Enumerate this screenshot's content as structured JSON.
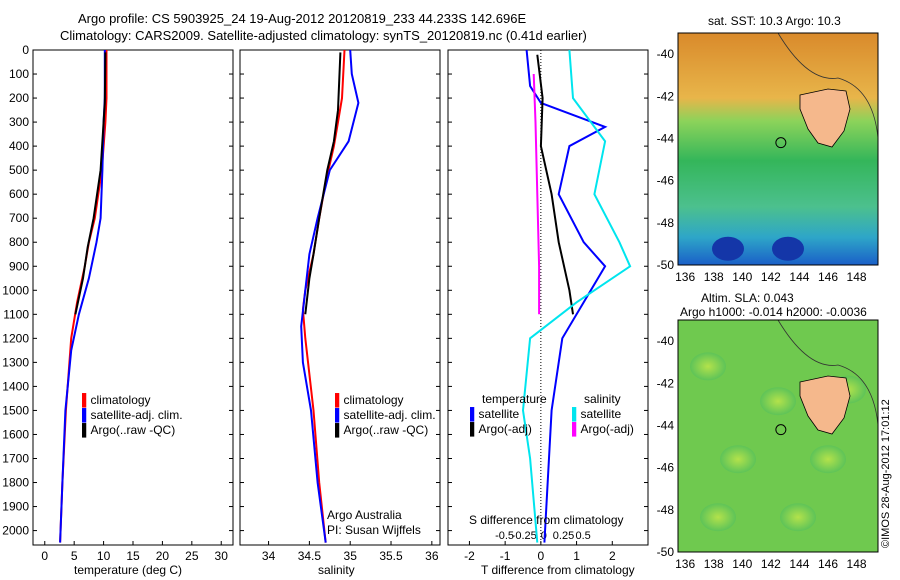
{
  "header": {
    "line1": "Argo profile: CS 5903925_24 19-Aug-2012 20120819_233 44.233S 142.696E",
    "line2": "Climatology: CARS2009. Satellite-adjusted climatology: synTS_20120819.nc (0.41d earlier)"
  },
  "colors": {
    "climatology": "#ff0000",
    "satellite": "#0000ff",
    "argo": "#000000",
    "argo_adj": "#ff00ff",
    "sat_sal": "#00e5ee"
  },
  "chart_data": [
    {
      "type": "line",
      "xlabel": "temperature (deg C)",
      "xticks": [
        "0",
        "5",
        "10",
        "15",
        "20",
        "25",
        "30"
      ],
      "yticks": [
        "0",
        "100",
        "200",
        "300",
        "400",
        "500",
        "600",
        "700",
        "800",
        "900",
        "1000",
        "1100",
        "1200",
        "1300",
        "1400",
        "1500",
        "1600",
        "1700",
        "1800",
        "1900",
        "2000"
      ],
      "xlim": [
        -2,
        32
      ],
      "ylim": [
        2060,
        0
      ],
      "legend": [
        "climatology",
        "satellite-adj. clim.",
        "Argo(..raw -QC)"
      ],
      "series": [
        {
          "name": "climatology",
          "color": "#ff0000",
          "points": [
            [
              10.5,
              0
            ],
            [
              10.5,
              200
            ],
            [
              10.3,
              300
            ],
            [
              9.7,
              500
            ],
            [
              8.5,
              700
            ],
            [
              7.5,
              800
            ],
            [
              6.8,
              900
            ],
            [
              5.5,
              1050
            ],
            [
              4.5,
              1200
            ],
            [
              3.6,
              1500
            ],
            [
              3.0,
              1800
            ],
            [
              2.6,
              2050
            ]
          ]
        },
        {
          "name": "satellite-adj. clim.",
          "color": "#0000ff",
          "points": [
            [
              10.2,
              0
            ],
            [
              10.2,
              200
            ],
            [
              10.0,
              300
            ],
            [
              9.8,
              500
            ],
            [
              9.5,
              700
            ],
            [
              8.8,
              800
            ],
            [
              7.5,
              950
            ],
            [
              5.8,
              1100
            ],
            [
              4.5,
              1250
            ],
            [
              3.5,
              1500
            ],
            [
              3.0,
              1800
            ],
            [
              2.6,
              2050
            ]
          ]
        },
        {
          "name": "Argo(..raw -QC)",
          "color": "#000000",
          "points": [
            [
              10.3,
              10
            ],
            [
              10.2,
              220
            ],
            [
              9.5,
              500
            ],
            [
              8.3,
              700
            ],
            [
              7.3,
              820
            ],
            [
              6.5,
              950
            ],
            [
              5.2,
              1100
            ]
          ]
        }
      ]
    },
    {
      "type": "line",
      "xlabel": "salinity",
      "xticks": [
        "34",
        "34.5",
        "35",
        "35.5",
        "36"
      ],
      "xlim": [
        33.65,
        36.1
      ],
      "ylim": [
        2060,
        0
      ],
      "legend": [
        "climatology",
        "satellite-adj. clim.",
        "Argo(..raw -QC)"
      ],
      "annotations": [
        "Argo Australia",
        "PI: Susan Wijffels"
      ],
      "series": [
        {
          "name": "climatology",
          "color": "#ff0000",
          "points": [
            [
              34.93,
              0
            ],
            [
              34.9,
              200
            ],
            [
              34.85,
              300
            ],
            [
              34.8,
              400
            ],
            [
              34.7,
              550
            ],
            [
              34.62,
              700
            ],
            [
              34.55,
              850
            ],
            [
              34.45,
              1000
            ],
            [
              34.42,
              1080
            ],
            [
              34.45,
              1200
            ],
            [
              34.55,
              1500
            ],
            [
              34.62,
              1800
            ],
            [
              34.7,
              2050
            ]
          ]
        },
        {
          "name": "satellite-adj. clim.",
          "color": "#0000ff",
          "points": [
            [
              35.0,
              0
            ],
            [
              35.02,
              100
            ],
            [
              35.1,
              220
            ],
            [
              34.98,
              380
            ],
            [
              34.75,
              500
            ],
            [
              34.6,
              700
            ],
            [
              34.5,
              850
            ],
            [
              34.45,
              1000
            ],
            [
              34.4,
              1150
            ],
            [
              34.42,
              1300
            ],
            [
              34.52,
              1500
            ],
            [
              34.6,
              1800
            ],
            [
              34.7,
              2050
            ]
          ]
        },
        {
          "name": "Argo(..raw -QC)",
          "color": "#000000",
          "points": [
            [
              34.88,
              10
            ],
            [
              34.85,
              250
            ],
            [
              34.8,
              380
            ],
            [
              34.72,
              500
            ],
            [
              34.62,
              700
            ],
            [
              34.55,
              850
            ],
            [
              34.5,
              950
            ],
            [
              34.45,
              1100
            ]
          ]
        }
      ]
    },
    {
      "type": "line",
      "xlabel": "T difference from climatology",
      "x2label": "S difference from climatology",
      "xticks": [
        "-2",
        "-1",
        "0",
        "1",
        "2"
      ],
      "x2ticks": [
        "-0.5",
        "-0.25",
        "0",
        "0.25",
        "0.5"
      ],
      "xlim": [
        -2.6,
        3.0
      ],
      "ylim": [
        2060,
        0
      ],
      "legend_title_left": "temperature",
      "legend_title_right": "salinity",
      "legend": [
        "satellite",
        "Argo(-adj)",
        "satellite",
        "Argo(-adj)"
      ],
      "series": [
        {
          "name": "temperature satellite",
          "color": "#0000ff",
          "points": [
            [
              -0.4,
              0
            ],
            [
              -0.3,
              150
            ],
            [
              0,
              220
            ],
            [
              1.8,
              320
            ],
            [
              0.8,
              400
            ],
            [
              0.5,
              600
            ],
            [
              1.2,
              800
            ],
            [
              1.8,
              900
            ],
            [
              1.2,
              1050
            ],
            [
              0.6,
              1200
            ],
            [
              0.3,
              1500
            ],
            [
              0.1,
              2050
            ]
          ]
        },
        {
          "name": "temperature Argo(-adj)",
          "color": "#000000",
          "points": [
            [
              -0.1,
              20
            ],
            [
              0.05,
              200
            ],
            [
              0,
              400
            ],
            [
              0.3,
              600
            ],
            [
              0.5,
              800
            ],
            [
              0.8,
              1000
            ],
            [
              0.9,
              1100
            ]
          ]
        },
        {
          "name": "salinity satellite",
          "color": "#00e5ee",
          "points": [
            [
              0.8,
              0
            ],
            [
              0.9,
              200
            ],
            [
              1.8,
              380
            ],
            [
              1.5,
              600
            ],
            [
              2.2,
              800
            ],
            [
              2.5,
              900
            ],
            [
              1.0,
              1050
            ],
            [
              -0.3,
              1200
            ],
            [
              -0.5,
              1500
            ],
            [
              -0.3,
              1700
            ],
            [
              -0.1,
              2050
            ]
          ]
        },
        {
          "name": "salinity Argo(-adj)",
          "color": "#ff00ff",
          "points": [
            [
              -0.2,
              100
            ],
            [
              -0.15,
              300
            ],
            [
              -0.1,
              600
            ],
            [
              -0.05,
              900
            ],
            [
              -0.05,
              1100
            ]
          ]
        }
      ]
    }
  ],
  "maps": [
    {
      "title": "sat. SST: 10.3 Argo: 10.3",
      "xticks": [
        "136",
        "138",
        "140",
        "142",
        "144",
        "146",
        "148"
      ],
      "yticks": [
        "-40",
        "-42",
        "-44",
        "-46",
        "-48",
        "-50"
      ],
      "argo_position": {
        "lon": 142.7,
        "lat": -44.2
      }
    },
    {
      "title1": "Altim. SLA: 0.043",
      "title2": "Argo h1000: -0.014 h2000: -0.0036",
      "xticks": [
        "136",
        "138",
        "140",
        "142",
        "144",
        "146",
        "148"
      ],
      "yticks": [
        "-40",
        "-42",
        "-44",
        "-46",
        "-48",
        "-50"
      ],
      "argo_position": {
        "lon": 142.7,
        "lat": -44.2
      }
    }
  ],
  "footer_stamp": "©IMOS 28-Aug-2012 17:01:12"
}
